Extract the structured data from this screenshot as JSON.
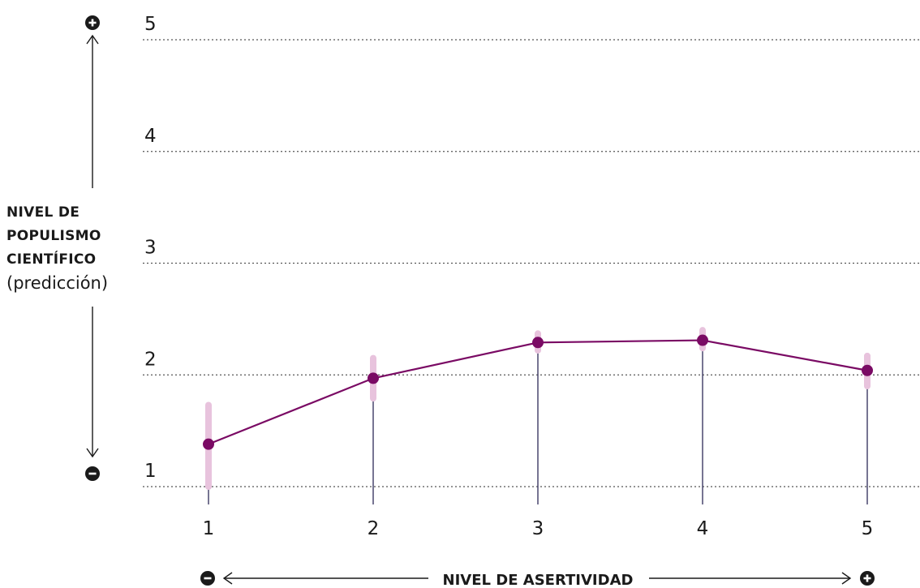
{
  "chart_data": {
    "type": "line",
    "x": [
      1,
      2,
      3,
      4,
      5
    ],
    "series": [
      {
        "values": [
          1.38,
          1.97,
          2.29,
          2.31,
          2.04
        ],
        "ci_low": [
          1.0,
          1.79,
          2.22,
          2.24,
          1.9
        ],
        "ci_high": [
          1.73,
          2.15,
          2.37,
          2.4,
          2.17
        ]
      }
    ],
    "x_ticks": [
      "1",
      "2",
      "3",
      "4",
      "5"
    ],
    "y_ticks": [
      "1",
      "2",
      "3",
      "4",
      "5"
    ],
    "ylim": [
      1,
      5
    ],
    "xlim": [
      1,
      5
    ],
    "ylabel_lines": [
      "NIVEL DE",
      "POPULISMO",
      "CIENTÍFICO"
    ],
    "ylabel_note": "(predicción)",
    "xlabel": "NIVEL DE ASERTIVIDAD",
    "grid": "horizontal dotted",
    "colors": {
      "line": "#7a0a64",
      "point": "#7a0a64",
      "ci": "#e8c3dd",
      "stem": "#3d3a63",
      "grid": "#555555",
      "text": "#1a1a1a"
    }
  }
}
